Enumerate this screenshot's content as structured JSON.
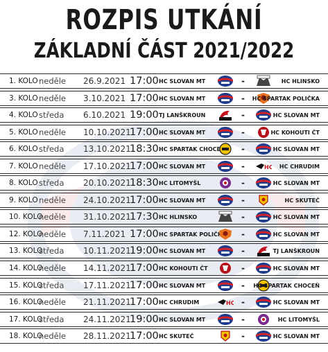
{
  "title": "ROZPIS UTKÁNÍ",
  "subtitle": "ZÁKLADNÍ ČÁST 2021/2022",
  "colors": {
    "line": "#2a2a2a",
    "slovan_blue": "#1f3d8c",
    "slovan_red": "#d2232a"
  },
  "matches": [
    {
      "kolo": "1. KOLO",
      "den": "neděle",
      "datum": "26.9.2021",
      "cas": "17:00",
      "home": "HC SLOVAN MT",
      "away": "HC HLINSKO",
      "home_logo": "slovan-logo",
      "away_logo": "hlinsko-logo"
    },
    {
      "kolo": "3. KOLO",
      "den": "neděle",
      "datum": "3.10.2021",
      "cas": "17:00",
      "home": "HC SLOVAN MT",
      "away": "HC SPARTAK POLIČKA",
      "home_logo": "slovan-logo",
      "away_logo": "policka-logo"
    },
    {
      "kolo": "4. KOLO",
      "den": "středa",
      "datum": "6.10.2021",
      "cas": "19:00",
      "home": "TJ LANŠKROUN",
      "away": "HC SLOVAN MT",
      "home_logo": "lanskroun-logo",
      "away_logo": "slovan-logo"
    },
    {
      "kolo": "5. KOLO",
      "den": "neděle",
      "datum": "10.10.2021",
      "cas": "17:00",
      "home": "HC SLOVAN MT",
      "away": "HC KOHOUTI ČT",
      "home_logo": "slovan-logo",
      "away_logo": "kohouti-logo"
    },
    {
      "kolo": "6. KOLO",
      "den": "středa",
      "datum": "13.10.2021",
      "cas": "18:30",
      "home": "HC SPARTAK CHOCEŇ",
      "away": "HC SLOVAN MT",
      "home_logo": "chocen-logo",
      "away_logo": "slovan-logo"
    },
    {
      "kolo": "7. KOLO",
      "den": "neděle",
      "datum": "17.10.2021",
      "cas": "17:00",
      "home": "HC SLOVAN MT",
      "away": "HC CHRUDIM",
      "home_logo": "slovan-logo",
      "away_logo": "chrudim-logo"
    },
    {
      "kolo": "8. KOLO",
      "den": "středa",
      "datum": "20.10.2021",
      "cas": "18:30",
      "home": "HC LITOMYŠL",
      "away": "HC SLOVAN MT",
      "home_logo": "litomysl-logo",
      "away_logo": "slovan-logo"
    },
    {
      "kolo": "9. KOLO",
      "den": "neděle",
      "datum": "24.10.2021",
      "cas": "17:00",
      "home": "HC SLOVAN MT",
      "away": "HC SKUTEČ",
      "home_logo": "slovan-logo",
      "away_logo": "skutec-logo"
    },
    {
      "kolo": "10. KOLO",
      "den": "neděle",
      "datum": "31.10.2021",
      "cas": "17:30",
      "home": "HC HLINSKO",
      "away": "HC SLOVAN MT",
      "home_logo": "hlinsko-logo",
      "away_logo": "slovan-logo"
    },
    {
      "kolo": "12. KOLO",
      "den": "neděle",
      "datum": "7.11.2021",
      "cas": "17:00",
      "home": "HC SPARTAK POLIČKA",
      "away": "HC SLOVAN MT",
      "home_logo": "policka-logo",
      "away_logo": "slovan-logo"
    },
    {
      "kolo": "13. KOLO",
      "den": "středa",
      "datum": "10.11.2021",
      "cas": "19:00",
      "home": "HC SLOVAN MT",
      "away": "TJ LANŠKROUN",
      "home_logo": "slovan-logo",
      "away_logo": "lanskroun-logo"
    },
    {
      "kolo": "14. KOLO",
      "den": "neděle",
      "datum": "14.11.2021",
      "cas": "17:00",
      "home": "HC KOHOUTI ČT",
      "away": "HC SLOVAN MT",
      "home_logo": "kohouti-logo",
      "away_logo": "slovan-logo"
    },
    {
      "kolo": "15. KOLO",
      "den": "středa",
      "datum": "17.11.2021",
      "cas": "17:00",
      "home": "HC SLOVAN MT",
      "away": "HC SPARTAK CHOCEŇ",
      "home_logo": "slovan-logo",
      "away_logo": "chocen-logo"
    },
    {
      "kolo": "16. KOLO",
      "den": "neděle",
      "datum": "21.11.2021",
      "cas": "17:00",
      "home": "HC CHRUDIM",
      "away": "HC SLOVAN MT",
      "home_logo": "chrudim-logo",
      "away_logo": "slovan-logo"
    },
    {
      "kolo": "17. KOLO",
      "den": "středa",
      "datum": "24.11.2021",
      "cas": "19:00",
      "home": "HC SLOVAN MT",
      "away": "HC LITOMYŠL",
      "home_logo": "slovan-logo",
      "away_logo": "litomysl-logo"
    },
    {
      "kolo": "18. KOLO",
      "den": "neděle",
      "datum": "28.11.2021",
      "cas": "17:00",
      "home": "HC SKUTEČ",
      "away": "HC SLOVAN MT",
      "home_logo": "skutec-logo",
      "away_logo": "slovan-logo"
    }
  ],
  "separator": "-"
}
